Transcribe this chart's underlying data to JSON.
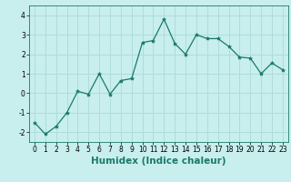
{
  "x": [
    0,
    1,
    2,
    3,
    4,
    5,
    6,
    7,
    8,
    9,
    10,
    11,
    12,
    13,
    14,
    15,
    16,
    17,
    18,
    19,
    20,
    21,
    22,
    23
  ],
  "y": [
    -1.5,
    -2.1,
    -1.7,
    -1.0,
    0.1,
    -0.05,
    1.0,
    -0.05,
    0.65,
    0.75,
    2.6,
    2.7,
    3.8,
    2.55,
    2.0,
    3.0,
    2.8,
    2.8,
    2.4,
    1.85,
    1.8,
    1.0,
    1.55,
    1.2
  ],
  "line_color": "#1a7a6a",
  "marker": "*",
  "marker_size": 3,
  "bg_color": "#c8eeee",
  "grid_color": "#b0dcdc",
  "xlabel": "Humidex (Indice chaleur)",
  "ylim": [
    -2.5,
    4.5
  ],
  "xlim": [
    -0.5,
    23.5
  ],
  "yticks": [
    -2,
    -1,
    0,
    1,
    2,
    3,
    4
  ],
  "xticks": [
    0,
    1,
    2,
    3,
    4,
    5,
    6,
    7,
    8,
    9,
    10,
    11,
    12,
    13,
    14,
    15,
    16,
    17,
    18,
    19,
    20,
    21,
    22,
    23
  ],
  "tick_fontsize": 5.5,
  "label_fontsize": 7.5
}
